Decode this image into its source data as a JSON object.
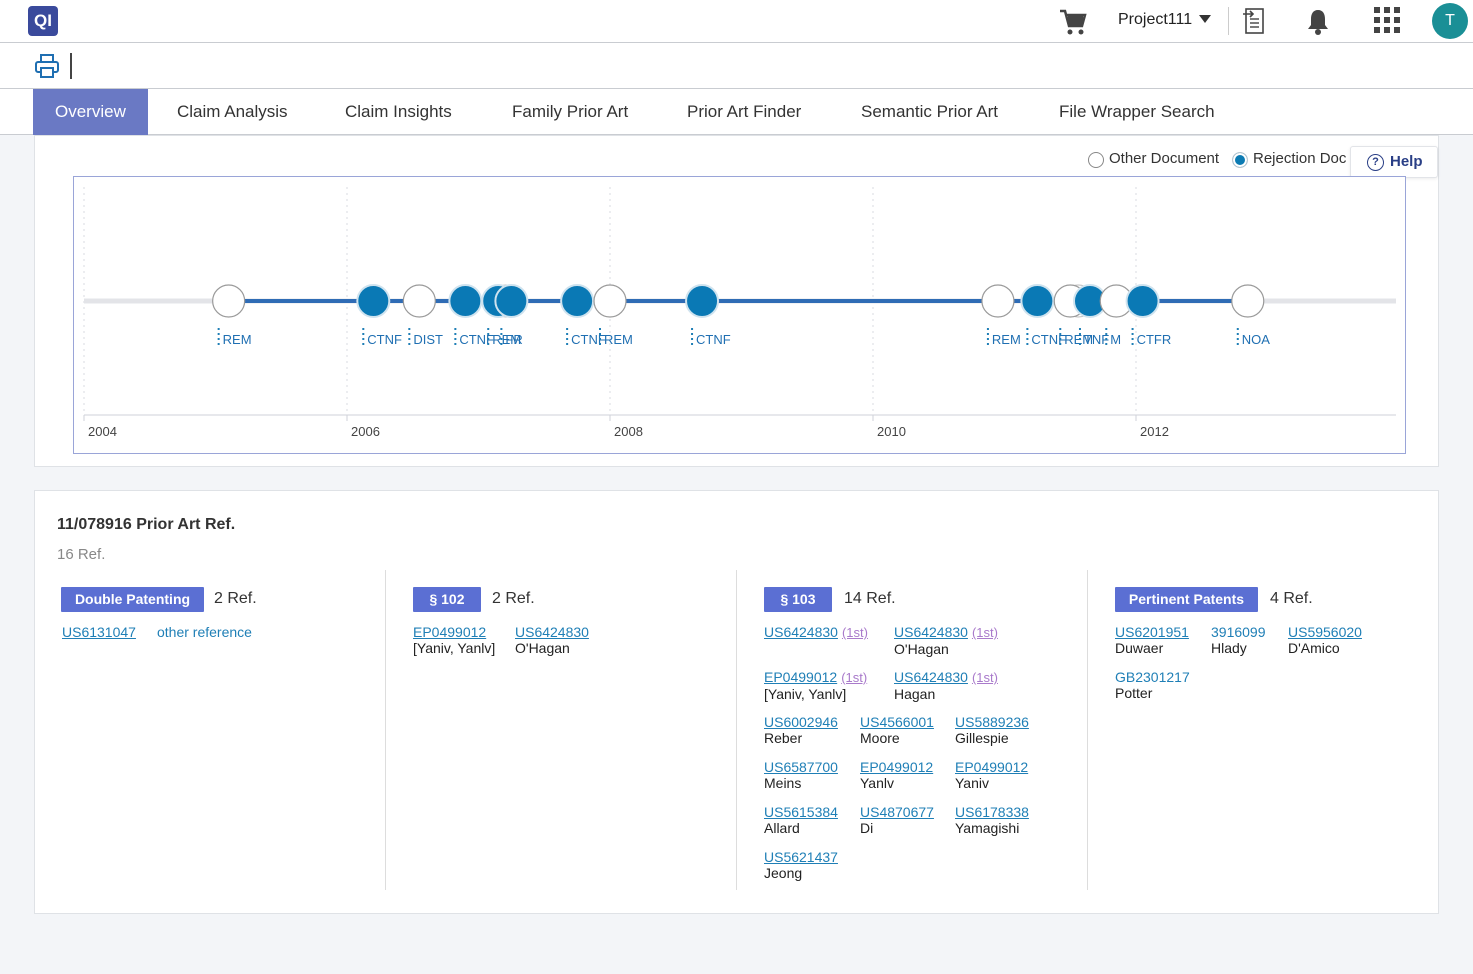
{
  "app": {
    "logo_text": "QI",
    "project": "Project111",
    "user_initial": "T",
    "accent": "#6a79c4",
    "avatar_color": "#1a8f96"
  },
  "icons": [
    "cart-icon",
    "dropdown-caret-icon",
    "export-document-icon",
    "bell-icon",
    "apps-grid-icon",
    "print-icon",
    "help-icon"
  ],
  "tabs": [
    {
      "label": "Overview",
      "active": true
    },
    {
      "label": "Claim Analysis"
    },
    {
      "label": "Claim Insights"
    },
    {
      "label": "Family Prior Art"
    },
    {
      "label": "Prior Art Finder"
    },
    {
      "label": "Semantic Prior Art"
    },
    {
      "label": "File Wrapper Search"
    }
  ],
  "legend": {
    "other": "Other Document",
    "rejection": "Rejection Doc",
    "help": "Help"
  },
  "timeline": {
    "years": [
      "2004",
      "2006",
      "2008",
      "2010",
      "2012"
    ],
    "colors": {
      "rejection": "#0a79b5",
      "line": "#2f6cb5"
    },
    "events": [
      {
        "label": "REM",
        "year": 2005.1,
        "type": "other"
      },
      {
        "label": "CTNF",
        "year": 2006.2,
        "type": "rejection"
      },
      {
        "label": "DIST",
        "year": 2006.55,
        "type": "other"
      },
      {
        "label": "CTNF",
        "year": 2006.9,
        "type": "rejection"
      },
      {
        "label": "REM",
        "year": 2007.15,
        "type": "rejection-stack"
      },
      {
        "label": "FR",
        "year": 2007.25,
        "type": "rejection"
      },
      {
        "label": "CTNF",
        "year": 2007.75,
        "type": "rejection"
      },
      {
        "label": "REM",
        "year": 2008.0,
        "type": "other"
      },
      {
        "label": "CTNF",
        "year": 2008.7,
        "type": "rejection"
      },
      {
        "label": "REM",
        "year": 2010.95,
        "type": "other"
      },
      {
        "label": "CTNF",
        "year": 2011.25,
        "type": "rejection"
      },
      {
        "label": "REM",
        "year": 2011.5,
        "type": "other-stack"
      },
      {
        "label": "TNF",
        "year": 2011.65,
        "type": "rejection"
      },
      {
        "label": "M",
        "year": 2011.85,
        "type": "other"
      },
      {
        "label": "CTFR",
        "year": 2012.05,
        "type": "rejection"
      },
      {
        "label": "NOA",
        "year": 2012.85,
        "type": "other"
      }
    ]
  },
  "prior_art": {
    "title": "11/078916 Prior Art Ref.",
    "count": "16 Ref.",
    "groups": [
      {
        "badge": "Double Patenting",
        "count": "2 Ref.",
        "refs": [
          {
            "num": "US6131047"
          },
          {
            "num": "other reference"
          }
        ]
      },
      {
        "badge": "§ 102",
        "count": "2 Ref.",
        "refs": [
          {
            "num": "EP0499012",
            "who": "[Yaniv, Yanlv]"
          },
          {
            "num": "US6424830",
            "who": "O'Hagan"
          }
        ]
      },
      {
        "badge": "§ 103",
        "count": "14 Ref.",
        "refs": [
          {
            "num": "US6424830",
            "tag": "(1st)"
          },
          {
            "num": "US6424830",
            "tag": "(1st)",
            "who": "O'Hagan"
          },
          {
            "num": "EP0499012",
            "tag": "(1st)",
            "who": "[Yaniv, Yanlv]"
          },
          {
            "num": "US6424830",
            "tag": "(1st)",
            "who": "Hagan"
          },
          {
            "num": "US6002946",
            "who": "Reber"
          },
          {
            "num": "US4566001",
            "who": "Moore"
          },
          {
            "num": "US5889236",
            "who": "Gillespie"
          },
          {
            "num": "US6587700",
            "who": "Meins"
          },
          {
            "num": "EP0499012",
            "who": "Yanlv"
          },
          {
            "num": "EP0499012",
            "who": "Yaniv"
          },
          {
            "num": "US5615384",
            "who": "Allard"
          },
          {
            "num": "US4870677",
            "who": "Di"
          },
          {
            "num": "US6178338",
            "who": "Yamagishi"
          },
          {
            "num": "US5621437",
            "who": "Jeong"
          }
        ]
      },
      {
        "badge": "Pertinent Patents",
        "count": "4 Ref.",
        "refs": [
          {
            "num": "US6201951",
            "who": "Duwaer"
          },
          {
            "num": "3916099",
            "who": "Hlady"
          },
          {
            "num": "US5956020",
            "who": "D'Amico"
          },
          {
            "num": "GB2301217",
            "who": "Potter"
          }
        ]
      }
    ]
  }
}
